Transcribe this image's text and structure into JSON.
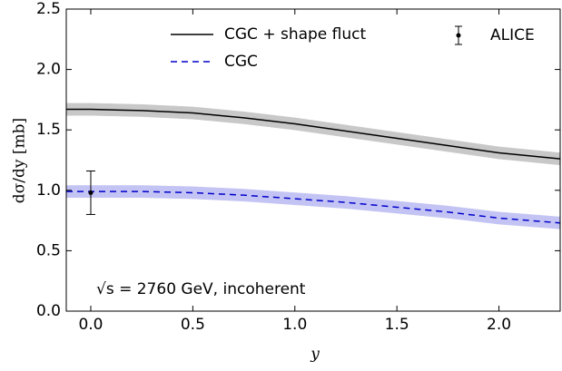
{
  "chart_data": {
    "type": "line",
    "xlabel": "y",
    "ylabel": "dσ/dy [mb]",
    "annotation": "√s = 2760 GeV, incoherent",
    "x": [
      -0.12,
      0,
      0.25,
      0.5,
      0.75,
      1,
      1.25,
      1.5,
      1.75,
      2,
      2.3
    ],
    "series": [
      {
        "name": "CGC + shape fluct",
        "color": "#000000",
        "style": "solid",
        "band_color": "#c8c8c8",
        "values": [
          1.67,
          1.67,
          1.66,
          1.64,
          1.6,
          1.55,
          1.49,
          1.43,
          1.37,
          1.31,
          1.26
        ],
        "band_lower": [
          1.62,
          1.62,
          1.61,
          1.59,
          1.55,
          1.5,
          1.44,
          1.38,
          1.32,
          1.26,
          1.21
        ],
        "band_upper": [
          1.72,
          1.72,
          1.71,
          1.69,
          1.65,
          1.6,
          1.54,
          1.48,
          1.42,
          1.36,
          1.31
        ]
      },
      {
        "name": "CGC",
        "color": "#0000cc",
        "style": "dashed",
        "band_color": "#c4c4f4",
        "values": [
          0.99,
          0.99,
          0.99,
          0.98,
          0.96,
          0.93,
          0.9,
          0.86,
          0.82,
          0.77,
          0.73
        ],
        "band_lower": [
          0.94,
          0.94,
          0.94,
          0.93,
          0.91,
          0.88,
          0.85,
          0.81,
          0.77,
          0.72,
          0.68
        ],
        "band_upper": [
          1.04,
          1.04,
          1.04,
          1.03,
          1.01,
          0.98,
          0.95,
          0.91,
          0.87,
          0.82,
          0.78
        ]
      }
    ],
    "points": {
      "name": "ALICE",
      "color": "#000000",
      "x": [
        0
      ],
      "values": [
        0.98
      ],
      "errors": [
        0.18
      ]
    },
    "xlim": [
      -0.12,
      2.3
    ],
    "ylim": [
      0,
      2.5
    ],
    "xticks": [
      {
        "value": 0,
        "label": "0.0"
      },
      0.5,
      {
        "value": 1,
        "label": "1.0"
      },
      1.5,
      {
        "value": 2,
        "label": "2.0"
      }
    ],
    "yticks": [
      {
        "value": 0,
        "label": "0.0"
      },
      0.5,
      {
        "value": 1,
        "label": "1.0"
      },
      1.5,
      {
        "value": 2,
        "label": "2.0"
      },
      2.5
    ],
    "grid": false
  }
}
